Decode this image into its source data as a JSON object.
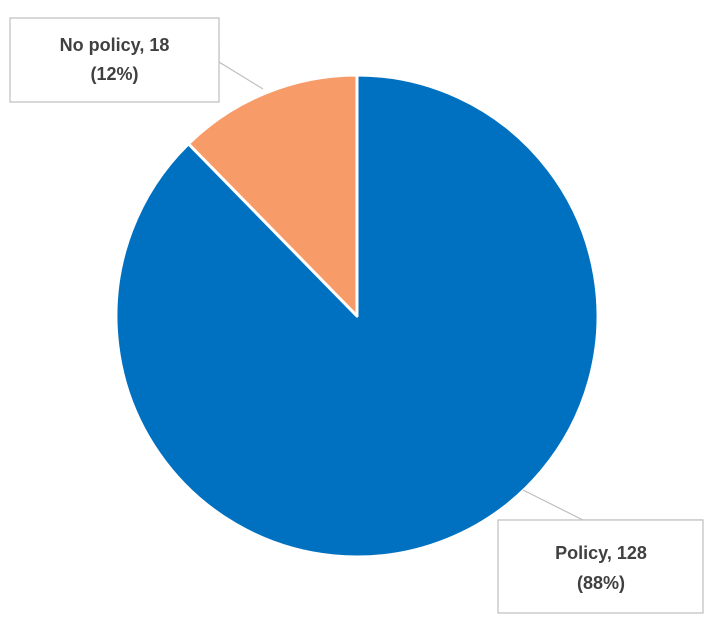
{
  "chart_data": {
    "type": "pie",
    "title": "",
    "slices": [
      {
        "name": "Policy",
        "value": 128,
        "percent": "88%",
        "label_line1": "Policy, 128",
        "label_line2": "(88%)",
        "color": "#0070C0"
      },
      {
        "name": "No policy",
        "value": 18,
        "percent": "12%",
        "label_line1": "No policy, 18",
        "label_line2": "(12%)",
        "color": "#F79B69"
      }
    ],
    "legend": "none",
    "data_labels": "callouts"
  }
}
